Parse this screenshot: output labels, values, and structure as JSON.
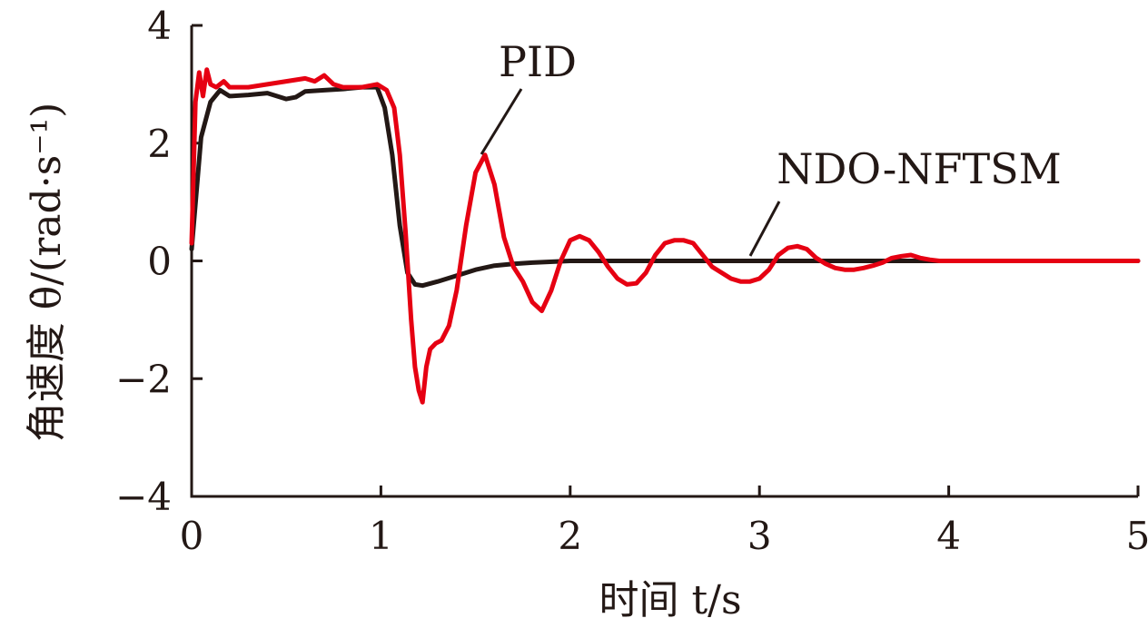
{
  "chart_data": {
    "type": "line",
    "xlabel": "时间 t/s",
    "ylabel": "角速度 θ̇/(rad·s⁻¹)",
    "xlim": [
      0,
      5
    ],
    "ylim": [
      -4,
      4
    ],
    "x_ticks": [
      0,
      1,
      2,
      3,
      4,
      5
    ],
    "y_ticks": [
      4,
      2,
      0,
      -2,
      -4
    ],
    "x_tick_labels": [
      "0",
      "1",
      "2",
      "3",
      "4",
      "5"
    ],
    "y_tick_labels": [
      "4",
      "2",
      "0",
      "−2",
      "−4"
    ],
    "grid": false,
    "annotations": [
      "PID",
      "NDO-NFTSM"
    ],
    "series": [
      {
        "name": "NDO-NFTSM",
        "color": "#231815",
        "x": [
          0,
          0.05,
          0.1,
          0.15,
          0.2,
          0.3,
          0.4,
          0.5,
          0.55,
          0.6,
          0.7,
          0.8,
          0.9,
          0.98,
          1.02,
          1.06,
          1.1,
          1.14,
          1.18,
          1.22,
          1.3,
          1.4,
          1.5,
          1.6,
          1.7,
          1.8,
          2.0,
          2.5,
          3.0,
          3.5,
          4.0,
          5.0
        ],
        "y": [
          0.2,
          2.1,
          2.7,
          2.9,
          2.8,
          2.82,
          2.85,
          2.75,
          2.78,
          2.88,
          2.9,
          2.92,
          2.95,
          2.95,
          2.6,
          1.8,
          0.6,
          -0.2,
          -0.4,
          -0.42,
          -0.35,
          -0.25,
          -0.15,
          -0.08,
          -0.05,
          -0.03,
          0,
          0,
          0,
          0,
          0,
          0
        ]
      },
      {
        "name": "PID",
        "color": "#e60012",
        "x": [
          0,
          0.02,
          0.04,
          0.06,
          0.08,
          0.1,
          0.13,
          0.17,
          0.2,
          0.3,
          0.4,
          0.5,
          0.6,
          0.65,
          0.7,
          0.75,
          0.8,
          0.9,
          0.98,
          1.03,
          1.07,
          1.1,
          1.13,
          1.16,
          1.18,
          1.2,
          1.22,
          1.24,
          1.26,
          1.29,
          1.32,
          1.36,
          1.4,
          1.45,
          1.5,
          1.55,
          1.6,
          1.65,
          1.7,
          1.75,
          1.8,
          1.85,
          1.9,
          1.95,
          2.0,
          2.05,
          2.1,
          2.15,
          2.2,
          2.25,
          2.3,
          2.35,
          2.4,
          2.45,
          2.5,
          2.55,
          2.6,
          2.65,
          2.7,
          2.75,
          2.8,
          2.85,
          2.9,
          2.95,
          3.0,
          3.05,
          3.1,
          3.15,
          3.2,
          3.25,
          3.3,
          3.35,
          3.4,
          3.45,
          3.5,
          3.55,
          3.6,
          3.65,
          3.7,
          3.75,
          3.8,
          3.85,
          3.9,
          3.95,
          4.0,
          5.0
        ],
        "y": [
          0.3,
          2.7,
          3.2,
          2.8,
          3.25,
          3.0,
          2.95,
          3.05,
          2.95,
          2.95,
          3.0,
          3.05,
          3.1,
          3.05,
          3.15,
          3.0,
          2.95,
          2.95,
          3.0,
          2.9,
          2.6,
          1.8,
          0.5,
          -1.0,
          -1.8,
          -2.2,
          -2.4,
          -1.8,
          -1.5,
          -1.4,
          -1.35,
          -1.1,
          -0.5,
          0.6,
          1.5,
          1.8,
          1.3,
          0.4,
          -0.1,
          -0.35,
          -0.7,
          -0.85,
          -0.5,
          0.0,
          0.35,
          0.42,
          0.35,
          0.15,
          -0.1,
          -0.3,
          -0.4,
          -0.38,
          -0.2,
          0.1,
          0.3,
          0.35,
          0.35,
          0.3,
          0.1,
          -0.1,
          -0.2,
          -0.3,
          -0.35,
          -0.35,
          -0.3,
          -0.15,
          0.1,
          0.22,
          0.25,
          0.2,
          0.05,
          -0.05,
          -0.12,
          -0.15,
          -0.15,
          -0.12,
          -0.08,
          -0.03,
          0.05,
          0.08,
          0.1,
          0.05,
          0.02,
          0,
          0,
          0
        ]
      }
    ]
  }
}
